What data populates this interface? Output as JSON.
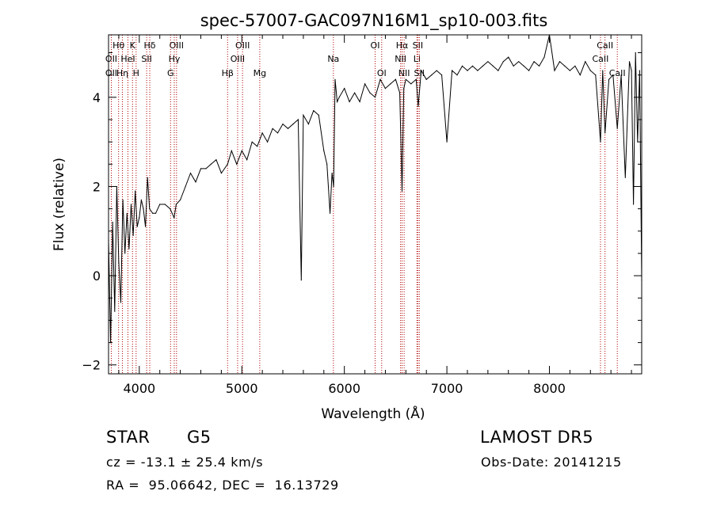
{
  "chart_data": {
    "type": "line",
    "title": "spec-57007-GAC097N16M1_sp10-003.fits",
    "xlabel": "Wavelength (Å)",
    "ylabel": "Flux (relative)",
    "xlim": [
      3700,
      8900
    ],
    "ylim": [
      -2.2,
      5.4
    ],
    "xticks": [
      4000,
      5000,
      6000,
      7000,
      8000
    ],
    "yticks": [
      -2,
      0,
      2,
      4
    ],
    "grid": false,
    "series": [
      {
        "color": "#000000",
        "x": [
          3700,
          3720,
          3740,
          3760,
          3780,
          3800,
          3820,
          3840,
          3860,
          3880,
          3900,
          3920,
          3940,
          3960,
          3980,
          4000,
          4020,
          4040,
          4060,
          4080,
          4100,
          4130,
          4160,
          4200,
          4250,
          4300,
          4340,
          4360,
          4400,
          4450,
          4500,
          4550,
          4600,
          4650,
          4700,
          4750,
          4800,
          4861,
          4900,
          4950,
          5000,
          5050,
          5100,
          5150,
          5200,
          5250,
          5300,
          5350,
          5400,
          5450,
          5500,
          5550,
          5580,
          5600,
          5650,
          5700,
          5750,
          5800,
          5830,
          5860,
          5880,
          5895,
          5910,
          5930,
          5950,
          6000,
          6050,
          6100,
          6150,
          6200,
          6250,
          6300,
          6350,
          6400,
          6450,
          6500,
          6540,
          6563,
          6580,
          6600,
          6650,
          6700,
          6720,
          6750,
          6800,
          6850,
          6900,
          6950,
          7000,
          7050,
          7100,
          7150,
          7200,
          7250,
          7300,
          7350,
          7400,
          7450,
          7500,
          7550,
          7600,
          7650,
          7700,
          7750,
          7800,
          7850,
          7900,
          7950,
          8000,
          8050,
          8100,
          8150,
          8200,
          8250,
          8300,
          8350,
          8400,
          8450,
          8498,
          8520,
          8542,
          8580,
          8620,
          8662,
          8700,
          8740,
          8780,
          8800,
          8820,
          8840,
          8860,
          8880,
          8900
        ],
        "y": [
          0.8,
          -1.5,
          1.2,
          -0.8,
          2.0,
          0.3,
          -0.6,
          1.7,
          0.5,
          1.4,
          0.6,
          1.6,
          0.9,
          1.9,
          1.1,
          1.3,
          1.7,
          1.5,
          1.1,
          2.2,
          1.5,
          1.4,
          1.4,
          1.6,
          1.6,
          1.5,
          1.3,
          1.6,
          1.7,
          2.0,
          2.3,
          2.1,
          2.4,
          2.4,
          2.5,
          2.6,
          2.3,
          2.5,
          2.8,
          2.5,
          2.8,
          2.6,
          3.0,
          2.9,
          3.2,
          3.0,
          3.3,
          3.2,
          3.4,
          3.3,
          3.4,
          3.5,
          -0.1,
          3.6,
          3.4,
          3.7,
          3.6,
          2.8,
          2.5,
          1.4,
          2.3,
          2.0,
          4.4,
          3.9,
          4.0,
          4.2,
          3.9,
          4.1,
          3.9,
          4.3,
          4.1,
          4.0,
          4.4,
          4.2,
          4.3,
          4.4,
          4.1,
          1.9,
          4.2,
          4.4,
          4.3,
          4.4,
          3.8,
          4.6,
          4.4,
          4.5,
          4.6,
          4.5,
          3.0,
          4.6,
          4.5,
          4.7,
          4.6,
          4.7,
          4.6,
          4.7,
          4.8,
          4.7,
          4.6,
          4.8,
          4.9,
          4.7,
          4.8,
          4.7,
          4.6,
          4.8,
          4.7,
          4.9,
          5.4,
          4.6,
          4.8,
          4.7,
          4.6,
          4.7,
          4.5,
          4.8,
          4.6,
          4.5,
          3.0,
          4.6,
          3.2,
          4.4,
          4.5,
          3.3,
          4.5,
          2.2,
          4.8,
          4.6,
          1.6,
          5.0,
          3.0,
          4.6,
          -0.1
        ]
      }
    ],
    "lines": [
      {
        "label": "Hθ",
        "x": 3798,
        "row": 0
      },
      {
        "label": "OII",
        "x": 3727,
        "row": 1
      },
      {
        "label": "OII",
        "x": 3727,
        "row": 2
      },
      {
        "label": "Hη",
        "x": 3835,
        "row": 2
      },
      {
        "label": "HeI",
        "x": 3889,
        "row": 1
      },
      {
        "label": "K",
        "x": 3934,
        "row": 0
      },
      {
        "label": "H",
        "x": 3969,
        "row": 2
      },
      {
        "label": "Hδ",
        "x": 4102,
        "row": 0
      },
      {
        "label": "SII",
        "x": 4072,
        "row": 1
      },
      {
        "label": "OIII",
        "x": 4363,
        "row": 0
      },
      {
        "label": "Hγ",
        "x": 4341,
        "row": 1
      },
      {
        "label": "G",
        "x": 4305,
        "row": 2
      },
      {
        "label": "Hβ",
        "x": 4861,
        "row": 2
      },
      {
        "label": "OIII",
        "x": 5007,
        "row": 0
      },
      {
        "label": "OIII",
        "x": 4959,
        "row": 1
      },
      {
        "label": "Mg",
        "x": 5175,
        "row": 2
      },
      {
        "label": "Na",
        "x": 5893,
        "row": 1
      },
      {
        "label": "OI",
        "x": 6300,
        "row": 0
      },
      {
        "label": "OI",
        "x": 6364,
        "row": 2
      },
      {
        "label": "Hα",
        "x": 6563,
        "row": 0
      },
      {
        "label": "NII",
        "x": 6548,
        "row": 1
      },
      {
        "label": "NII",
        "x": 6583,
        "row": 2
      },
      {
        "label": "SII",
        "x": 6716,
        "row": 0
      },
      {
        "label": "Li",
        "x": 6708,
        "row": 1
      },
      {
        "label": "SII",
        "x": 6731,
        "row": 2
      },
      {
        "label": "CaII",
        "x": 8542,
        "row": 0
      },
      {
        "label": "CaII",
        "x": 8498,
        "row": 1
      },
      {
        "label": "CaII",
        "x": 8662,
        "row": 2
      }
    ]
  },
  "info": {
    "class": "STAR",
    "subclass": "G5",
    "survey": "LAMOST DR5",
    "cz_line": "cz = -13.1 ± 25.4 km/s",
    "obs_date": "Obs-Date: 20141215",
    "coords": "RA =  95.06642, DEC =  16.13729"
  }
}
